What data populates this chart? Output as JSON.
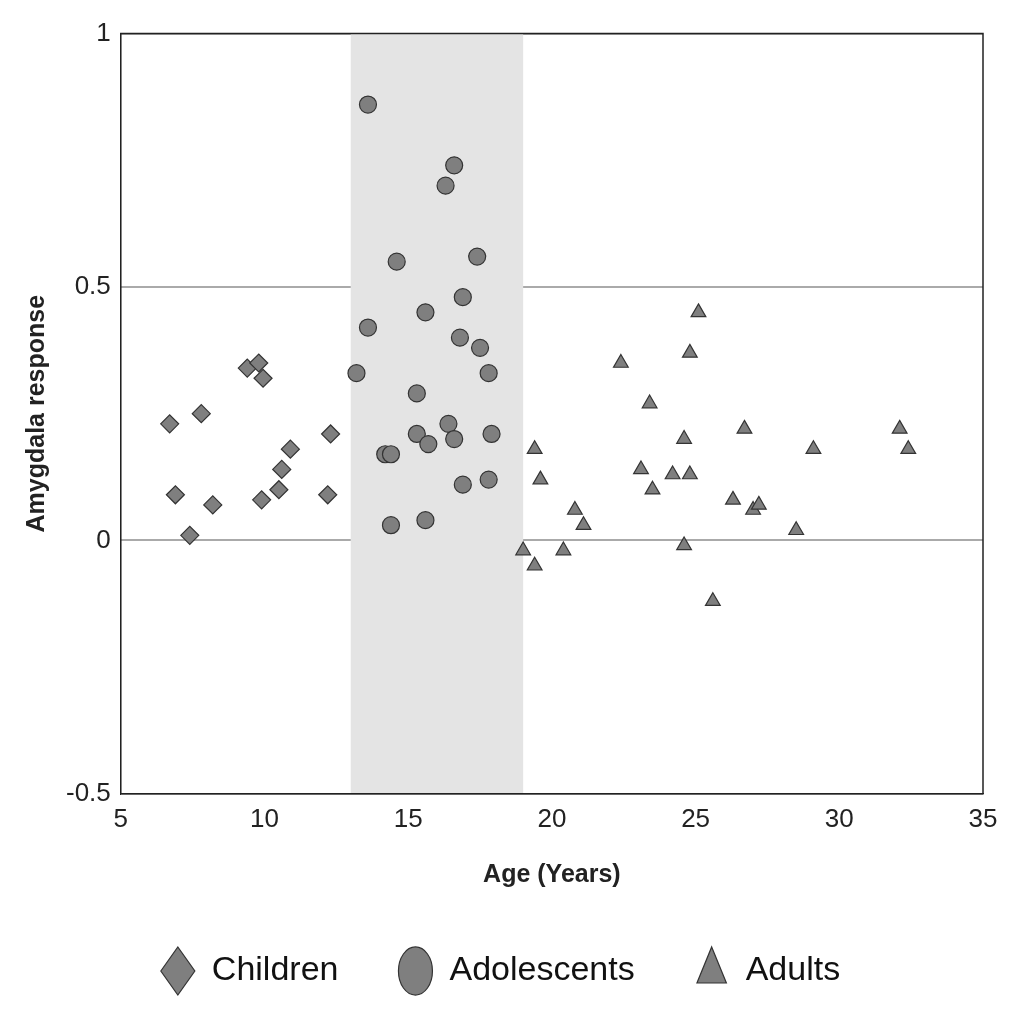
{
  "chart_data": {
    "type": "scatter",
    "xlabel": "Age (Years)",
    "ylabel": "Amygdala response",
    "xlim": [
      5,
      35
    ],
    "xticks": [
      5,
      10,
      15,
      20,
      25,
      30,
      35
    ],
    "ylim": [
      -0.5,
      1
    ],
    "yticks": [
      -0.5,
      0,
      0.5,
      1
    ],
    "grid": "y",
    "legend": "bottom",
    "bands": [
      {
        "axis": "x",
        "from": 13,
        "to": 19,
        "color": "#e4e4e4"
      }
    ],
    "series": [
      {
        "name": "Children",
        "color": "#7f7f7f",
        "marker": "diamond",
        "x": [
          6.7,
          6.9,
          7.4,
          7.8,
          8.2,
          9.4,
          9.8,
          9.95,
          9.9,
          10.5,
          10.6,
          10.9,
          12.2,
          12.3
        ],
        "values": [
          0.23,
          0.09,
          0.01,
          0.25,
          0.07,
          0.34,
          0.35,
          0.32,
          0.08,
          0.1,
          0.14,
          0.18,
          0.09,
          0.21
        ]
      },
      {
        "name": "Adolescents",
        "color": "#7f7f7f",
        "marker": "circle",
        "x": [
          13.6,
          13.2,
          13.6,
          14.6,
          14.2,
          14.4,
          14.4,
          15.3,
          15.3,
          15.6,
          15.7,
          15.6,
          16.3,
          16.4,
          16.6,
          16.6,
          16.9,
          16.8,
          16.9,
          17.4,
          17.5,
          17.8,
          17.9,
          17.8
        ],
        "values": [
          0.86,
          0.33,
          0.42,
          0.55,
          0.17,
          0.17,
          0.03,
          0.29,
          0.21,
          0.45,
          0.19,
          0.04,
          0.7,
          0.23,
          0.74,
          0.2,
          0.48,
          0.4,
          0.11,
          0.56,
          0.38,
          0.33,
          0.21,
          0.12
        ]
      },
      {
        "name": "Adults",
        "color": "#7f7f7f",
        "marker": "triangle",
        "x": [
          19.0,
          19.4,
          19.4,
          19.6,
          20.4,
          20.8,
          21.1,
          22.4,
          23.1,
          23.4,
          23.5,
          24.2,
          24.6,
          24.6,
          24.8,
          24.8,
          25.1,
          25.6,
          26.3,
          26.7,
          27.0,
          27.2,
          28.5,
          29.1,
          32.1,
          32.4
        ],
        "values": [
          -0.02,
          -0.05,
          0.18,
          0.12,
          -0.02,
          0.06,
          0.03,
          0.35,
          0.14,
          0.27,
          0.1,
          0.13,
          0.2,
          -0.01,
          0.37,
          0.13,
          0.45,
          -0.12,
          0.08,
          0.22,
          0.06,
          0.07,
          0.02,
          0.18,
          0.22,
          0.18
        ]
      }
    ]
  }
}
